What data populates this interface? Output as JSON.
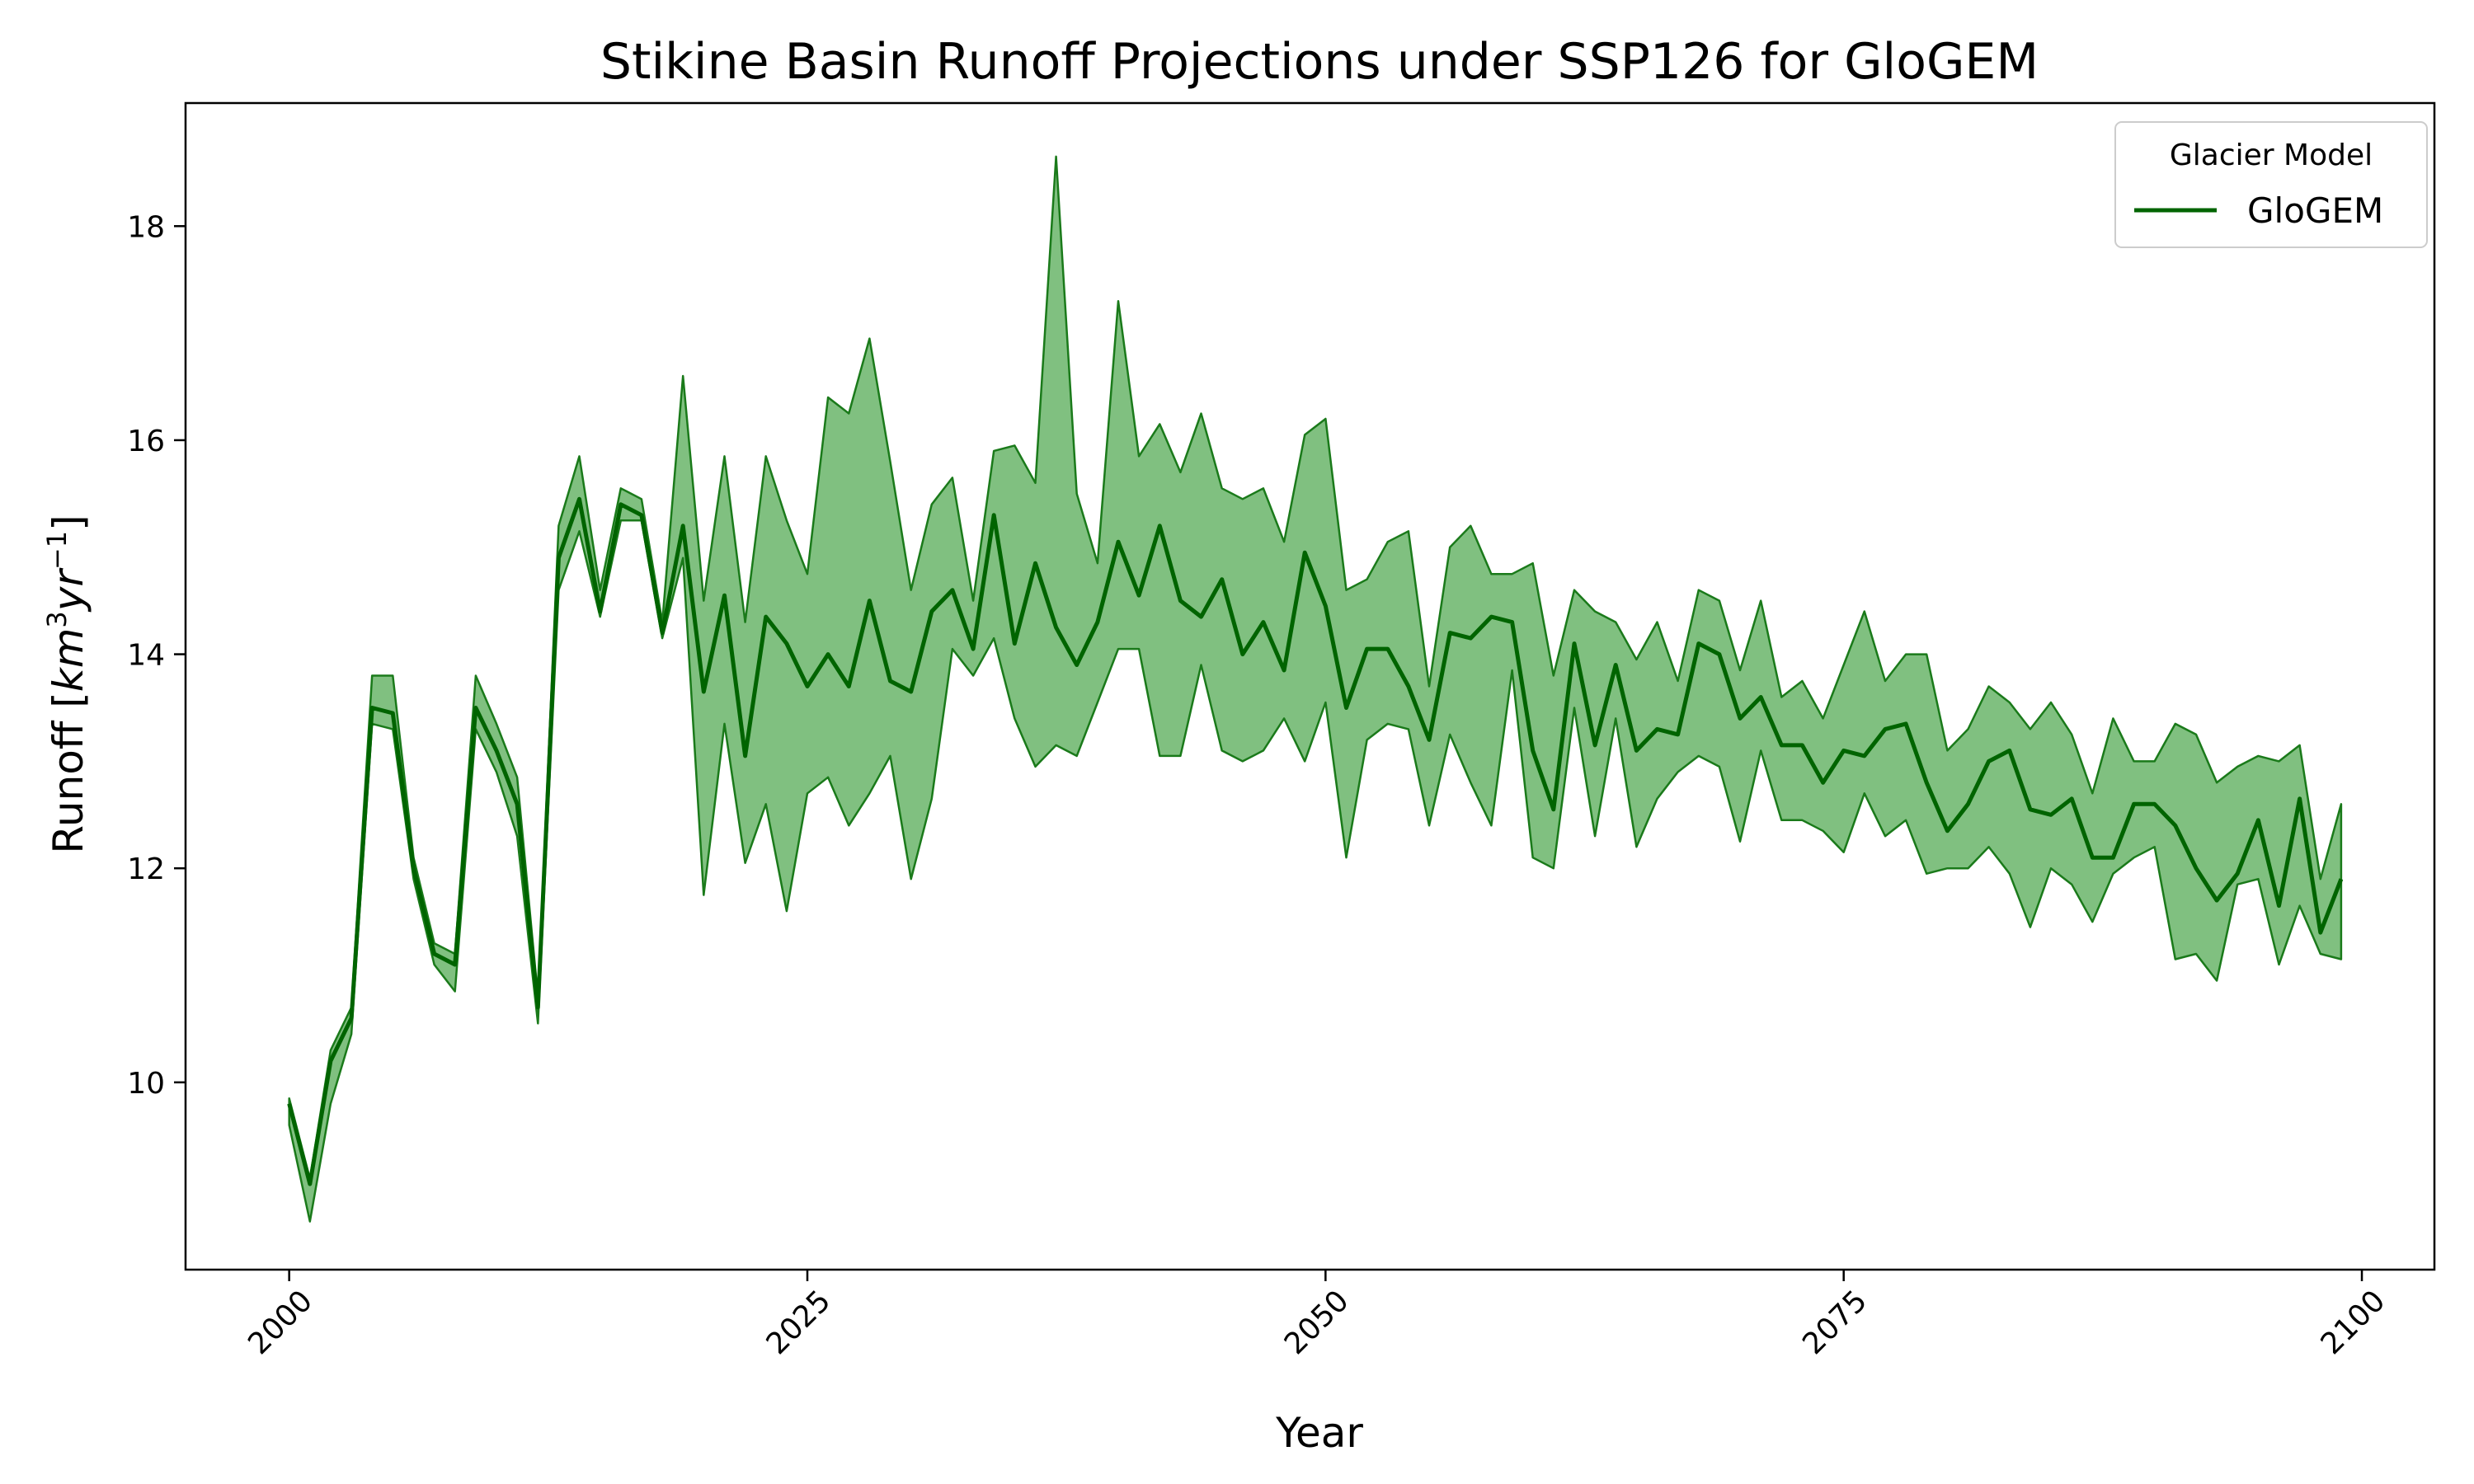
{
  "chart_data": {
    "type": "line",
    "title": "Stikine Basin Runoff Projections under SSP126 for GloGEM",
    "xlabel": "Year",
    "ylabel_text": "Runoff [",
    "ylabel_unit": {
      "base1": "km",
      "sup1": "3",
      "base2": "yr",
      "sup2": "−1",
      "close": "]"
    },
    "xlim": [
      1995,
      2103.5
    ],
    "ylim": [
      8.25,
      19.15
    ],
    "xticks": [
      "2000",
      "2025",
      "2050",
      "2075",
      "2100"
    ],
    "yticks": [
      "10",
      "12",
      "14",
      "16",
      "18"
    ],
    "legend": {
      "title": "Glacier Model",
      "placement": "top-right"
    },
    "colors": {
      "line": "#006400",
      "band_fill": "#80c080",
      "band_edge": "#1a7a1a"
    },
    "x_start": 2000,
    "series": [
      {
        "name": "GloGEM",
        "values": [
          9.8,
          9.05,
          10.2,
          10.6,
          13.5,
          13.45,
          12.0,
          11.2,
          11.1,
          13.5,
          13.1,
          12.6,
          10.7,
          14.9,
          15.45,
          14.4,
          15.4,
          15.3,
          14.2,
          15.2,
          13.65,
          14.55,
          13.05,
          14.35,
          14.1,
          13.7,
          14.0,
          13.7,
          14.5,
          13.75,
          13.65,
          14.4,
          14.6,
          14.05,
          15.3,
          14.1,
          14.85,
          14.25,
          13.9,
          14.3,
          15.05,
          14.55,
          15.2,
          14.5,
          14.35,
          14.7,
          14.0,
          14.3,
          13.85,
          14.95,
          14.45,
          13.5,
          14.05,
          14.05,
          13.7,
          13.2,
          14.2,
          14.15,
          14.35,
          14.3,
          13.1,
          12.55,
          14.1,
          13.15,
          13.9,
          13.1,
          13.3,
          13.25,
          14.1,
          14.0,
          13.4,
          13.6,
          13.15,
          13.15,
          12.8,
          13.1,
          13.05,
          13.3,
          13.35,
          12.8,
          12.35,
          12.6,
          13.0,
          13.1,
          12.55,
          12.5,
          12.65,
          12.1,
          12.1,
          12.6,
          12.6,
          12.4,
          12.0,
          11.7,
          11.95,
          12.45,
          11.65,
          12.65,
          11.4,
          11.9
        ],
        "upper": [
          9.85,
          9.1,
          10.3,
          10.7,
          13.8,
          13.8,
          12.1,
          11.3,
          11.2,
          13.8,
          13.35,
          12.85,
          10.8,
          15.2,
          15.85,
          14.6,
          15.55,
          15.45,
          14.3,
          16.6,
          14.5,
          15.85,
          14.3,
          15.85,
          15.25,
          14.75,
          16.4,
          16.25,
          16.95,
          15.8,
          14.6,
          15.4,
          15.65,
          14.5,
          15.9,
          15.95,
          15.6,
          18.65,
          15.5,
          14.85,
          17.3,
          15.85,
          16.15,
          15.7,
          16.25,
          15.55,
          15.45,
          15.55,
          15.05,
          16.05,
          16.2,
          14.6,
          14.7,
          15.05,
          15.15,
          13.7,
          15.0,
          15.2,
          14.75,
          14.75,
          14.85,
          13.8,
          14.6,
          14.4,
          14.3,
          13.95,
          14.3,
          13.75,
          14.6,
          14.5,
          13.85,
          14.5,
          13.6,
          13.75,
          13.4,
          13.9,
          14.4,
          13.75,
          14.0,
          14.0,
          13.1,
          13.3,
          13.7,
          13.55,
          13.3,
          13.55,
          13.25,
          12.7,
          13.4,
          13.0,
          13.0,
          13.35,
          13.25,
          12.8,
          12.95,
          13.05,
          13.0,
          13.15,
          11.9,
          12.6
        ],
        "lower": [
          9.6,
          8.7,
          9.8,
          10.45,
          13.35,
          13.3,
          11.9,
          11.1,
          10.85,
          13.3,
          12.9,
          12.3,
          10.55,
          14.6,
          15.15,
          14.35,
          15.25,
          15.25,
          14.15,
          14.9,
          11.75,
          13.35,
          12.05,
          12.6,
          11.6,
          12.7,
          12.85,
          12.4,
          12.7,
          13.05,
          11.9,
          12.65,
          14.05,
          13.8,
          14.15,
          13.4,
          12.95,
          13.15,
          13.05,
          13.55,
          14.05,
          14.05,
          13.05,
          13.05,
          13.9,
          13.1,
          13.0,
          13.1,
          13.4,
          13.0,
          13.55,
          12.1,
          13.2,
          13.35,
          13.3,
          12.4,
          13.25,
          12.8,
          12.4,
          13.85,
          12.1,
          12.0,
          13.5,
          12.3,
          13.4,
          12.2,
          12.65,
          12.9,
          13.05,
          12.95,
          12.25,
          13.1,
          12.45,
          12.45,
          12.35,
          12.15,
          12.7,
          12.3,
          12.45,
          11.95,
          12.0,
          12.0,
          12.2,
          11.95,
          11.45,
          12.0,
          11.85,
          11.5,
          11.95,
          12.1,
          12.2,
          11.15,
          11.2,
          10.95,
          11.85,
          11.9,
          11.1,
          11.65,
          11.2,
          11.15
        ]
      }
    ]
  }
}
